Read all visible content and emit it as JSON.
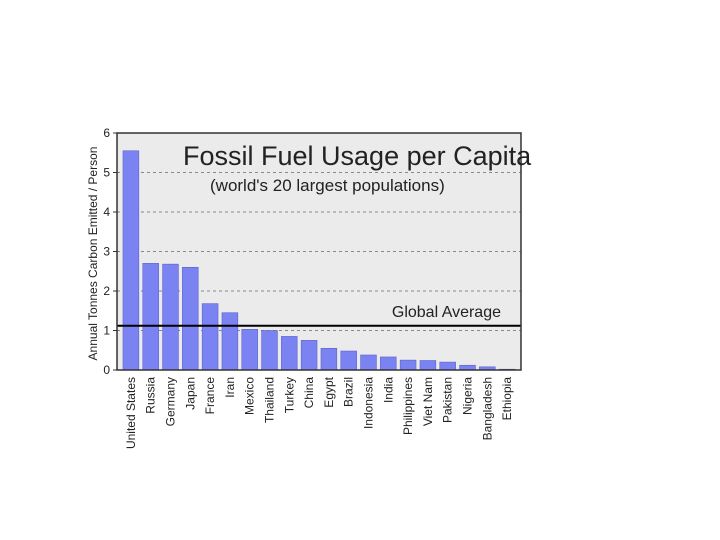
{
  "chart_data": {
    "type": "bar",
    "title": "Fossil Fuel Usage per Capita",
    "subtitle": "(world's 20 largest populations)",
    "ylabel": "Annual Tonnes Carbon Emitted / Person",
    "xlabel": "",
    "ylim": [
      0,
      6
    ],
    "yticks": [
      "0",
      "1",
      "2",
      "3",
      "4",
      "5",
      "6"
    ],
    "grid": "horizontal dashed",
    "bar_color": "#7b83f2",
    "plot_background": "#ebebeb",
    "categories": [
      "United States",
      "Russia",
      "Germany",
      "Japan",
      "France",
      "Iran",
      "Mexico",
      "Thailand",
      "Turkey",
      "China",
      "Egypt",
      "Brazil",
      "Indonesia",
      "India",
      "Philippines",
      "Viet Nam",
      "Pakistan",
      "Nigeria",
      "Bangladesh",
      "Ethiopia"
    ],
    "values": [
      5.55,
      2.7,
      2.68,
      2.6,
      1.68,
      1.45,
      1.03,
      1.0,
      0.85,
      0.75,
      0.55,
      0.48,
      0.38,
      0.33,
      0.25,
      0.24,
      0.2,
      0.12,
      0.08,
      0.02
    ],
    "reference_line": {
      "label": "Global Average",
      "value": 1.12
    }
  }
}
